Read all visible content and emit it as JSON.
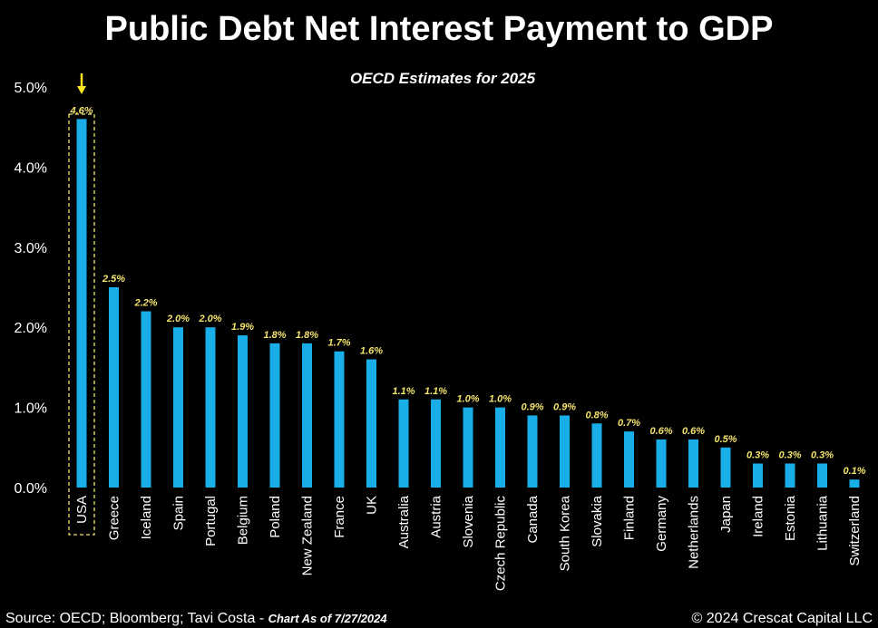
{
  "chart_data": {
    "type": "bar",
    "title": "Public Debt Net Interest Payment to GDP",
    "subtitle": "OECD Estimates for 2025",
    "categories": [
      "USA",
      "Greece",
      "Iceland",
      "Spain",
      "Portugal",
      "Belgium",
      "Poland",
      "New Zealand",
      "France",
      "UK",
      "Australia",
      "Austria",
      "Slovenia",
      "Czech Republic",
      "Canada",
      "South Korea",
      "Slovakia",
      "Finland",
      "Germany",
      "Netherlands",
      "Japan",
      "Ireland",
      "Estonia",
      "Lithuania",
      "Switzerland"
    ],
    "values": [
      4.6,
      2.5,
      2.2,
      2.0,
      2.0,
      1.9,
      1.8,
      1.8,
      1.7,
      1.6,
      1.1,
      1.1,
      1.0,
      1.0,
      0.9,
      0.9,
      0.8,
      0.7,
      0.6,
      0.6,
      0.5,
      0.3,
      0.3,
      0.3,
      0.1
    ],
    "value_labels": [
      "4.6%",
      "2.5%",
      "2.2%",
      "2.0%",
      "2.0%",
      "1.9%",
      "1.8%",
      "1.8%",
      "1.7%",
      "1.6%",
      "1.1%",
      "1.1%",
      "1.0%",
      "1.0%",
      "0.9%",
      "0.9%",
      "0.8%",
      "0.7%",
      "0.6%",
      "0.6%",
      "0.5%",
      "0.3%",
      "0.3%",
      "0.3%",
      "0.1%"
    ],
    "ylim": [
      0,
      5
    ],
    "yticks": [
      "0.0%",
      "1.0%",
      "2.0%",
      "3.0%",
      "4.0%",
      "5.0%"
    ],
    "xlabel": "",
    "ylabel": "",
    "grid": false,
    "highlight_category": "USA",
    "colors": {
      "bar": "#19aee8",
      "value_label": "#f3e36b",
      "highlight_box": "#f3e36b",
      "arrow": "#ffe81a",
      "text": "#ffffff",
      "background": "#000000"
    }
  },
  "footer": {
    "source": "Source: OECD; Bloomberg; Tavi Costa - ",
    "chart_as_of": "Chart As of 7/27/2024",
    "copyright": "© 2024 Crescat Capital LLC"
  }
}
